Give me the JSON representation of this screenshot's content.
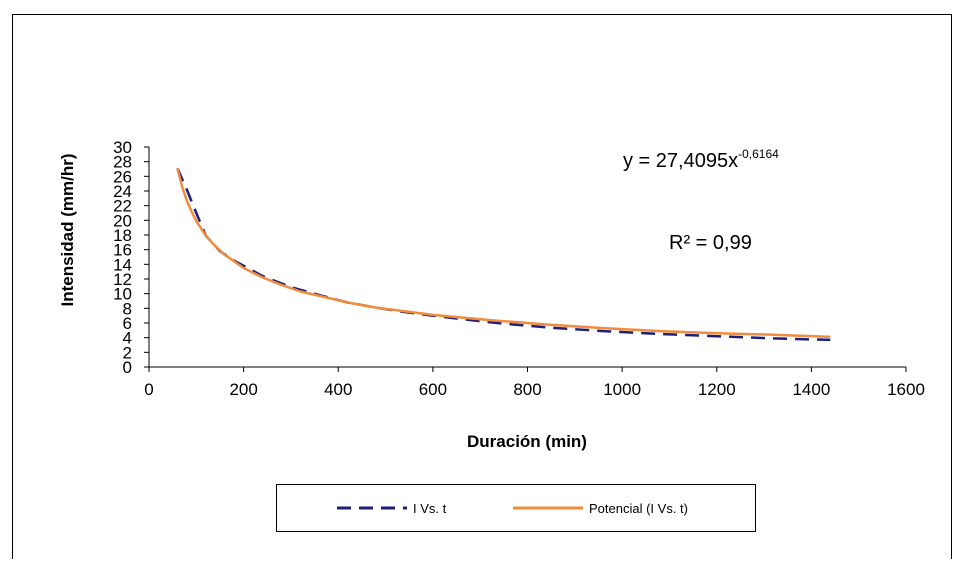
{
  "chart_data": {
    "type": "line",
    "xlabel": "Duración (min)",
    "ylabel": "Intensidad (mm/hr)",
    "xlim": [
      0,
      1600
    ],
    "ylim": [
      0,
      30
    ],
    "x_ticks": [
      0,
      200,
      400,
      600,
      800,
      1000,
      1200,
      1400,
      1600
    ],
    "y_ticks": [
      0,
      2,
      4,
      6,
      8,
      10,
      12,
      14,
      16,
      18,
      20,
      22,
      24,
      26,
      28,
      30
    ],
    "grid": false,
    "legend_position": "bottom",
    "equation": {
      "base": "y = 27,4095x",
      "exponent": "-0,6164"
    },
    "r_squared": "R² = 0,99",
    "series": [
      {
        "name": "I Vs. t",
        "style": "dashed",
        "color": "#1f1f7a",
        "x": [
          60,
          80,
          100,
          120,
          150,
          180,
          240,
          300,
          360,
          420,
          480,
          540,
          600,
          720,
          840,
          960,
          1080,
          1200,
          1320,
          1440
        ],
        "y": [
          27.1,
          24.2,
          21.0,
          17.9,
          15.8,
          14.5,
          12.4,
          10.9,
          9.8,
          8.8,
          8.1,
          7.5,
          7.0,
          6.1,
          5.4,
          4.9,
          4.5,
          4.2,
          3.9,
          3.7
        ]
      },
      {
        "name": "Potencial (I Vs. t)",
        "style": "solid",
        "color": "#f08c3c",
        "x": [
          60,
          70,
          80,
          90,
          100,
          120,
          140,
          160,
          180,
          200,
          240,
          280,
          320,
          360,
          420,
          480,
          540,
          600,
          720,
          840,
          960,
          1080,
          1200,
          1320,
          1440
        ],
        "y": [
          27.1,
          24.6,
          22.7,
          21.2,
          19.9,
          17.9,
          16.5,
          15.3,
          14.4,
          13.5,
          12.2,
          11.2,
          10.3,
          9.7,
          8.8,
          8.1,
          7.6,
          7.1,
          6.4,
          5.8,
          5.3,
          4.9,
          4.6,
          4.4,
          4.1
        ]
      }
    ]
  }
}
